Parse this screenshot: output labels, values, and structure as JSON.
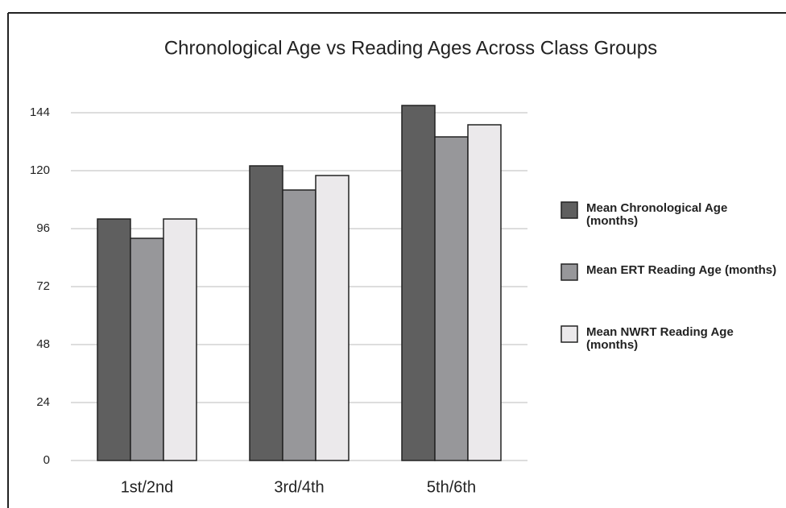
{
  "chart_data": {
    "type": "bar",
    "title": "Chronological Age vs Reading Ages Across Class Groups",
    "categories": [
      "1st/2nd",
      "3rd/4th",
      "5th/6th"
    ],
    "series": [
      {
        "name": "Mean Chronological Age (months)",
        "color": "#5f5f5f",
        "values": [
          100,
          122,
          147
        ]
      },
      {
        "name": "Mean ERT Reading Age (months)",
        "color": "#97979a",
        "values": [
          92,
          112,
          134
        ]
      },
      {
        "name": "Mean NWRT Reading Age (months)",
        "color": "#ebe9eb",
        "values": [
          100,
          118,
          139
        ]
      }
    ],
    "ylim": [
      0,
      150
    ],
    "yticks": [
      0,
      24,
      48,
      72,
      96,
      120,
      144
    ],
    "grid": true,
    "legend": "right"
  }
}
